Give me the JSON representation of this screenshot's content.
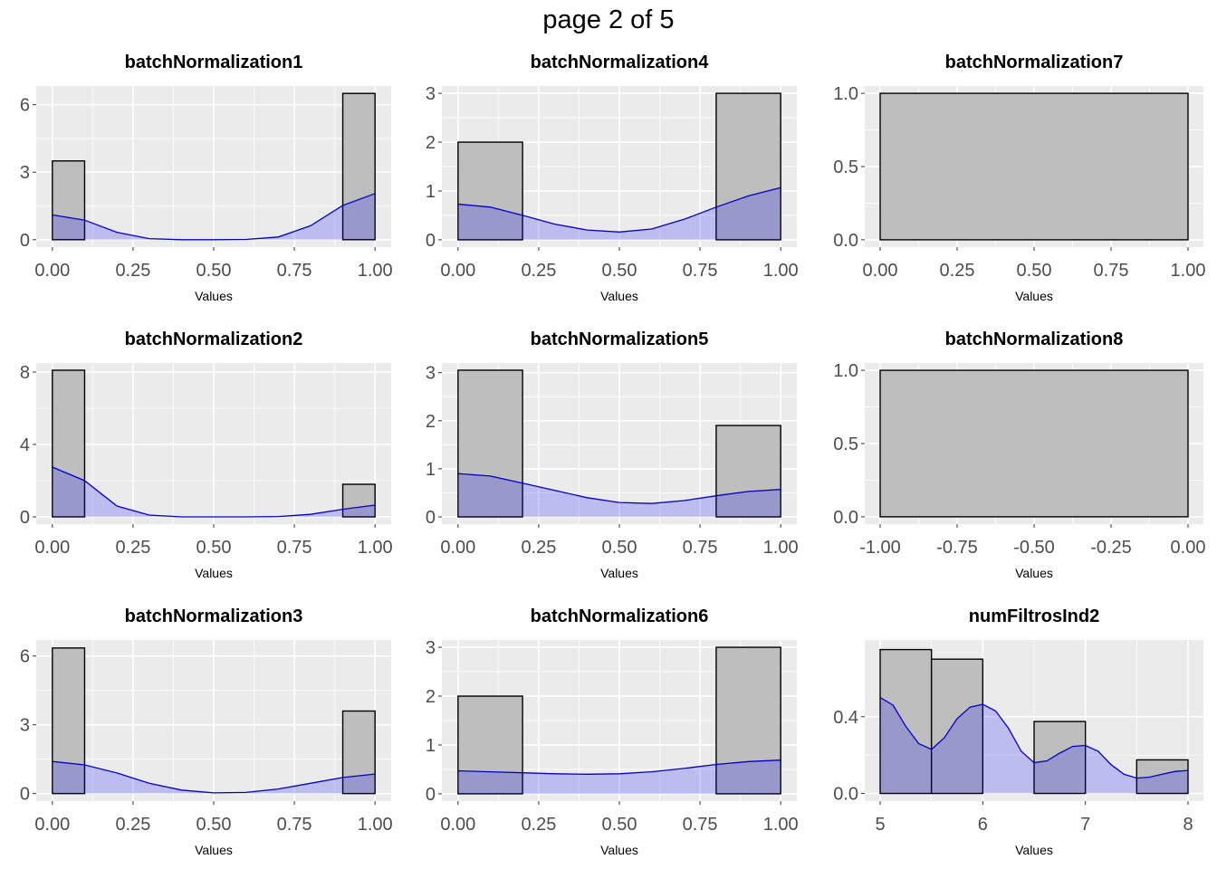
{
  "page_title": "page 2 of 5",
  "colors": {
    "panel_bg": "#ebebeb",
    "grid": "#ffffff",
    "bar_fill": "#bebebe",
    "bar_stroke": "#000000",
    "density_fill": "#0000ff",
    "density_line": "#0000cc"
  },
  "chart_data": [
    {
      "type": "bar",
      "title": "batchNormalization1",
      "xlabel": "Values",
      "xticks": [
        0,
        0.25,
        0.5,
        0.75,
        1
      ],
      "xtick_labels": [
        "0.00",
        "0.25",
        "0.50",
        "0.75",
        "1.00"
      ],
      "yticks": [
        0,
        3,
        6
      ],
      "ytick_labels": [
        "0",
        "3",
        "6"
      ],
      "xlim": [
        -0.05,
        1.05
      ],
      "ylim": [
        -0.33,
        6.83
      ],
      "bins": [
        {
          "x0": 0.0,
          "x1": 0.1,
          "y": 3.5
        },
        {
          "x0": 0.9,
          "x1": 1.0,
          "y": 6.5
        }
      ],
      "density": [
        [
          0,
          1.1
        ],
        [
          0.1,
          0.87
        ],
        [
          0.2,
          0.33
        ],
        [
          0.3,
          0.05
        ],
        [
          0.4,
          0
        ],
        [
          0.5,
          0
        ],
        [
          0.6,
          0.01
        ],
        [
          0.7,
          0.12
        ],
        [
          0.8,
          0.62
        ],
        [
          0.9,
          1.52
        ],
        [
          1.0,
          2.05
        ]
      ]
    },
    {
      "type": "bar",
      "title": "batchNormalization4",
      "xlabel": "Values",
      "xticks": [
        0,
        0.25,
        0.5,
        0.75,
        1
      ],
      "xtick_labels": [
        "0.00",
        "0.25",
        "0.50",
        "0.75",
        "1.00"
      ],
      "yticks": [
        0,
        1,
        2,
        3
      ],
      "ytick_labels": [
        "0",
        "1",
        "2",
        "3"
      ],
      "xlim": [
        -0.05,
        1.05
      ],
      "ylim": [
        -0.15,
        3.15
      ],
      "bins": [
        {
          "x0": 0.0,
          "x1": 0.2,
          "y": 2.0
        },
        {
          "x0": 0.8,
          "x1": 1.0,
          "y": 3.0
        }
      ],
      "density": [
        [
          0,
          0.73
        ],
        [
          0.1,
          0.67
        ],
        [
          0.2,
          0.5
        ],
        [
          0.3,
          0.32
        ],
        [
          0.4,
          0.2
        ],
        [
          0.5,
          0.16
        ],
        [
          0.6,
          0.22
        ],
        [
          0.7,
          0.42
        ],
        [
          0.8,
          0.67
        ],
        [
          0.9,
          0.9
        ],
        [
          1.0,
          1.07
        ]
      ]
    },
    {
      "type": "bar",
      "title": "batchNormalization7",
      "xlabel": "Values",
      "xticks": [
        0,
        0.25,
        0.5,
        0.75,
        1
      ],
      "xtick_labels": [
        "0.00",
        "0.25",
        "0.50",
        "0.75",
        "1.00"
      ],
      "yticks": [
        0,
        0.5,
        1.0
      ],
      "ytick_labels": [
        "0.0",
        "0.5",
        "1.0"
      ],
      "xlim": [
        -0.05,
        1.05
      ],
      "ylim": [
        -0.05,
        1.05
      ],
      "bins": [
        {
          "x0": 0.0,
          "x1": 1.0,
          "y": 1.0
        }
      ],
      "density": []
    },
    {
      "type": "bar",
      "title": "batchNormalization2",
      "xlabel": "Values",
      "xticks": [
        0,
        0.25,
        0.5,
        0.75,
        1
      ],
      "xtick_labels": [
        "0.00",
        "0.25",
        "0.50",
        "0.75",
        "1.00"
      ],
      "yticks": [
        0,
        4,
        8
      ],
      "ytick_labels": [
        "0",
        "4",
        "8"
      ],
      "xlim": [
        -0.05,
        1.05
      ],
      "ylim": [
        -0.4,
        8.5
      ],
      "bins": [
        {
          "x0": 0.0,
          "x1": 0.1,
          "y": 8.1
        },
        {
          "x0": 0.9,
          "x1": 1.0,
          "y": 1.8
        }
      ],
      "density": [
        [
          0,
          2.75
        ],
        [
          0.1,
          2.0
        ],
        [
          0.2,
          0.6
        ],
        [
          0.3,
          0.1
        ],
        [
          0.4,
          0
        ],
        [
          0.5,
          0
        ],
        [
          0.6,
          0
        ],
        [
          0.7,
          0.02
        ],
        [
          0.8,
          0.14
        ],
        [
          0.9,
          0.42
        ],
        [
          1.0,
          0.65
        ]
      ]
    },
    {
      "type": "bar",
      "title": "batchNormalization5",
      "xlabel": "Values",
      "xticks": [
        0,
        0.25,
        0.5,
        0.75,
        1
      ],
      "xtick_labels": [
        "0.00",
        "0.25",
        "0.50",
        "0.75",
        "1.00"
      ],
      "yticks": [
        0,
        1,
        2,
        3
      ],
      "ytick_labels": [
        "0",
        "1",
        "2",
        "3"
      ],
      "xlim": [
        -0.05,
        1.05
      ],
      "ylim": [
        -0.15,
        3.2
      ],
      "bins": [
        {
          "x0": 0.0,
          "x1": 0.2,
          "y": 3.05
        },
        {
          "x0": 0.8,
          "x1": 1.0,
          "y": 1.9
        }
      ],
      "density": [
        [
          0,
          0.9
        ],
        [
          0.1,
          0.85
        ],
        [
          0.2,
          0.7
        ],
        [
          0.3,
          0.55
        ],
        [
          0.4,
          0.4
        ],
        [
          0.5,
          0.3
        ],
        [
          0.6,
          0.28
        ],
        [
          0.7,
          0.34
        ],
        [
          0.8,
          0.44
        ],
        [
          0.9,
          0.53
        ],
        [
          1.0,
          0.57
        ]
      ]
    },
    {
      "type": "bar",
      "title": "batchNormalization8",
      "xlabel": "Values",
      "xticks": [
        -1,
        -0.75,
        -0.5,
        -0.25,
        0
      ],
      "xtick_labels": [
        "-1.00",
        "-0.75",
        "-0.50",
        "-0.25",
        "0.00"
      ],
      "yticks": [
        0,
        0.5,
        1.0
      ],
      "ytick_labels": [
        "0.0",
        "0.5",
        "1.0"
      ],
      "xlim": [
        -1.05,
        0.05
      ],
      "ylim": [
        -0.05,
        1.05
      ],
      "bins": [
        {
          "x0": -1.0,
          "x1": 0.0,
          "y": 1.0
        }
      ],
      "density": []
    },
    {
      "type": "bar",
      "title": "batchNormalization3",
      "xlabel": "Values",
      "xticks": [
        0,
        0.25,
        0.5,
        0.75,
        1
      ],
      "xtick_labels": [
        "0.00",
        "0.25",
        "0.50",
        "0.75",
        "1.00"
      ],
      "yticks": [
        0,
        3,
        6
      ],
      "ytick_labels": [
        "0",
        "3",
        "6"
      ],
      "xlim": [
        -0.05,
        1.05
      ],
      "ylim": [
        -0.33,
        6.7
      ],
      "bins": [
        {
          "x0": 0.0,
          "x1": 0.1,
          "y": 6.35
        },
        {
          "x0": 0.9,
          "x1": 1.0,
          "y": 3.6
        }
      ],
      "density": [
        [
          0,
          1.4
        ],
        [
          0.1,
          1.25
        ],
        [
          0.2,
          0.9
        ],
        [
          0.3,
          0.45
        ],
        [
          0.4,
          0.15
        ],
        [
          0.5,
          0.03
        ],
        [
          0.6,
          0.05
        ],
        [
          0.7,
          0.2
        ],
        [
          0.8,
          0.45
        ],
        [
          0.9,
          0.7
        ],
        [
          1.0,
          0.85
        ]
      ]
    },
    {
      "type": "bar",
      "title": "batchNormalization6",
      "xlabel": "Values",
      "xticks": [
        0,
        0.25,
        0.5,
        0.75,
        1
      ],
      "xtick_labels": [
        "0.00",
        "0.25",
        "0.50",
        "0.75",
        "1.00"
      ],
      "yticks": [
        0,
        1,
        2,
        3
      ],
      "ytick_labels": [
        "0",
        "1",
        "2",
        "3"
      ],
      "xlim": [
        -0.05,
        1.05
      ],
      "ylim": [
        -0.15,
        3.15
      ],
      "bins": [
        {
          "x0": 0.0,
          "x1": 0.2,
          "y": 2.0
        },
        {
          "x0": 0.8,
          "x1": 1.0,
          "y": 3.0
        }
      ],
      "density": [
        [
          0,
          0.47
        ],
        [
          0.1,
          0.45
        ],
        [
          0.2,
          0.43
        ],
        [
          0.3,
          0.41
        ],
        [
          0.4,
          0.4
        ],
        [
          0.5,
          0.41
        ],
        [
          0.6,
          0.45
        ],
        [
          0.7,
          0.52
        ],
        [
          0.8,
          0.6
        ],
        [
          0.9,
          0.66
        ],
        [
          1.0,
          0.69
        ]
      ]
    },
    {
      "type": "bar",
      "title": "numFiltrosInd2",
      "xlabel": "Values",
      "xticks": [
        5,
        6,
        7,
        8
      ],
      "xtick_labels": [
        "5",
        "6",
        "7",
        "8"
      ],
      "yticks": [
        0,
        0.4
      ],
      "ytick_labels": [
        "0.0",
        "0.4"
      ],
      "xlim": [
        4.85,
        8.15
      ],
      "ylim": [
        -0.04,
        0.8
      ],
      "bins": [
        {
          "x0": 5.0,
          "x1": 5.5,
          "y": 0.75
        },
        {
          "x0": 5.5,
          "x1": 6.0,
          "y": 0.7
        },
        {
          "x0": 6.5,
          "x1": 7.0,
          "y": 0.375
        },
        {
          "x0": 7.5,
          "x1": 8.0,
          "y": 0.175
        }
      ],
      "density": [
        [
          5,
          0.5
        ],
        [
          5.125,
          0.46
        ],
        [
          5.25,
          0.35
        ],
        [
          5.375,
          0.26
        ],
        [
          5.5,
          0.23
        ],
        [
          5.625,
          0.29
        ],
        [
          5.75,
          0.39
        ],
        [
          5.875,
          0.45
        ],
        [
          6,
          0.465
        ],
        [
          6.125,
          0.43
        ],
        [
          6.25,
          0.34
        ],
        [
          6.375,
          0.22
        ],
        [
          6.5,
          0.16
        ],
        [
          6.625,
          0.17
        ],
        [
          6.75,
          0.21
        ],
        [
          6.875,
          0.245
        ],
        [
          7,
          0.25
        ],
        [
          7.125,
          0.22
        ],
        [
          7.25,
          0.15
        ],
        [
          7.375,
          0.1
        ],
        [
          7.5,
          0.08
        ],
        [
          7.625,
          0.085
        ],
        [
          7.75,
          0.1
        ],
        [
          7.875,
          0.115
        ],
        [
          8,
          0.12
        ]
      ]
    }
  ]
}
